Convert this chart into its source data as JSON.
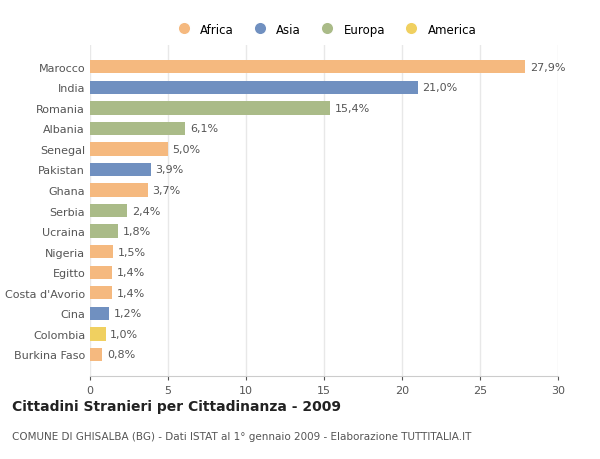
{
  "countries": [
    "Marocco",
    "India",
    "Romania",
    "Albania",
    "Senegal",
    "Pakistan",
    "Ghana",
    "Serbia",
    "Ucraina",
    "Nigeria",
    "Egitto",
    "Costa d'Avorio",
    "Cina",
    "Colombia",
    "Burkina Faso"
  ],
  "values": [
    27.9,
    21.0,
    15.4,
    6.1,
    5.0,
    3.9,
    3.7,
    2.4,
    1.8,
    1.5,
    1.4,
    1.4,
    1.2,
    1.0,
    0.8
  ],
  "continents": [
    "Africa",
    "Asia",
    "Europa",
    "Europa",
    "Africa",
    "Asia",
    "Africa",
    "Europa",
    "Europa",
    "Africa",
    "Africa",
    "Africa",
    "Asia",
    "America",
    "Africa"
  ],
  "colors": {
    "Africa": "#F5B97F",
    "Asia": "#7090C0",
    "Europa": "#AABB88",
    "America": "#F0D060"
  },
  "title": "Cittadini Stranieri per Cittadinanza - 2009",
  "subtitle": "COMUNE DI GHISALBA (BG) - Dati ISTAT al 1° gennaio 2009 - Elaborazione TUTTITALIA.IT",
  "xlim": [
    0,
    30
  ],
  "xticks": [
    0,
    5,
    10,
    15,
    20,
    25,
    30
  ],
  "background_color": "#FFFFFF",
  "bar_height": 0.65,
  "grid_color": "#E8E8E8",
  "tick_label_fontsize": 8,
  "value_label_fontsize": 8,
  "title_fontsize": 10,
  "subtitle_fontsize": 7.5,
  "legend_fontsize": 8.5
}
